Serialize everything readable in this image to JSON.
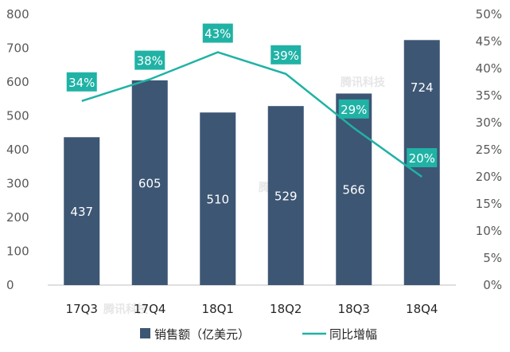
{
  "chart_data": {
    "type": "bar+line",
    "categories": [
      "17Q3",
      "17Q4",
      "18Q1",
      "18Q2",
      "18Q3",
      "18Q4"
    ],
    "series": [
      {
        "name": "销售额（亿美元）",
        "type": "bar",
        "axis": "left",
        "values": [
          437,
          605,
          510,
          529,
          566,
          724
        ]
      },
      {
        "name": "同比增幅",
        "type": "line",
        "axis": "right",
        "values": [
          34,
          38,
          43,
          39,
          29,
          20
        ]
      }
    ],
    "bar_labels": [
      "437",
      "605",
      "510",
      "529",
      "566",
      "724"
    ],
    "line_labels": [
      "34%",
      "38%",
      "43%",
      "39%",
      "29%",
      "20%"
    ],
    "y_left": {
      "min": 0,
      "max": 800,
      "step": 100,
      "ticks": [
        "0",
        "100",
        "200",
        "300",
        "400",
        "500",
        "600",
        "700",
        "800"
      ]
    },
    "y_right": {
      "min": 0,
      "max": 50,
      "step": 5,
      "ticks": [
        "0%",
        "5%",
        "10%",
        "15%",
        "20%",
        "25%",
        "30%",
        "35%",
        "40%",
        "45%",
        "50%"
      ]
    },
    "legend": {
      "placement": "bottom",
      "bar_label": "销售额（亿美元）",
      "line_label": "同比增幅"
    },
    "watermark": "腾讯科技",
    "colors": {
      "bar": "#3d5674",
      "line": "#20b2a5",
      "label_box": "#20b2a5",
      "axis": "#bfbfbf"
    }
  }
}
